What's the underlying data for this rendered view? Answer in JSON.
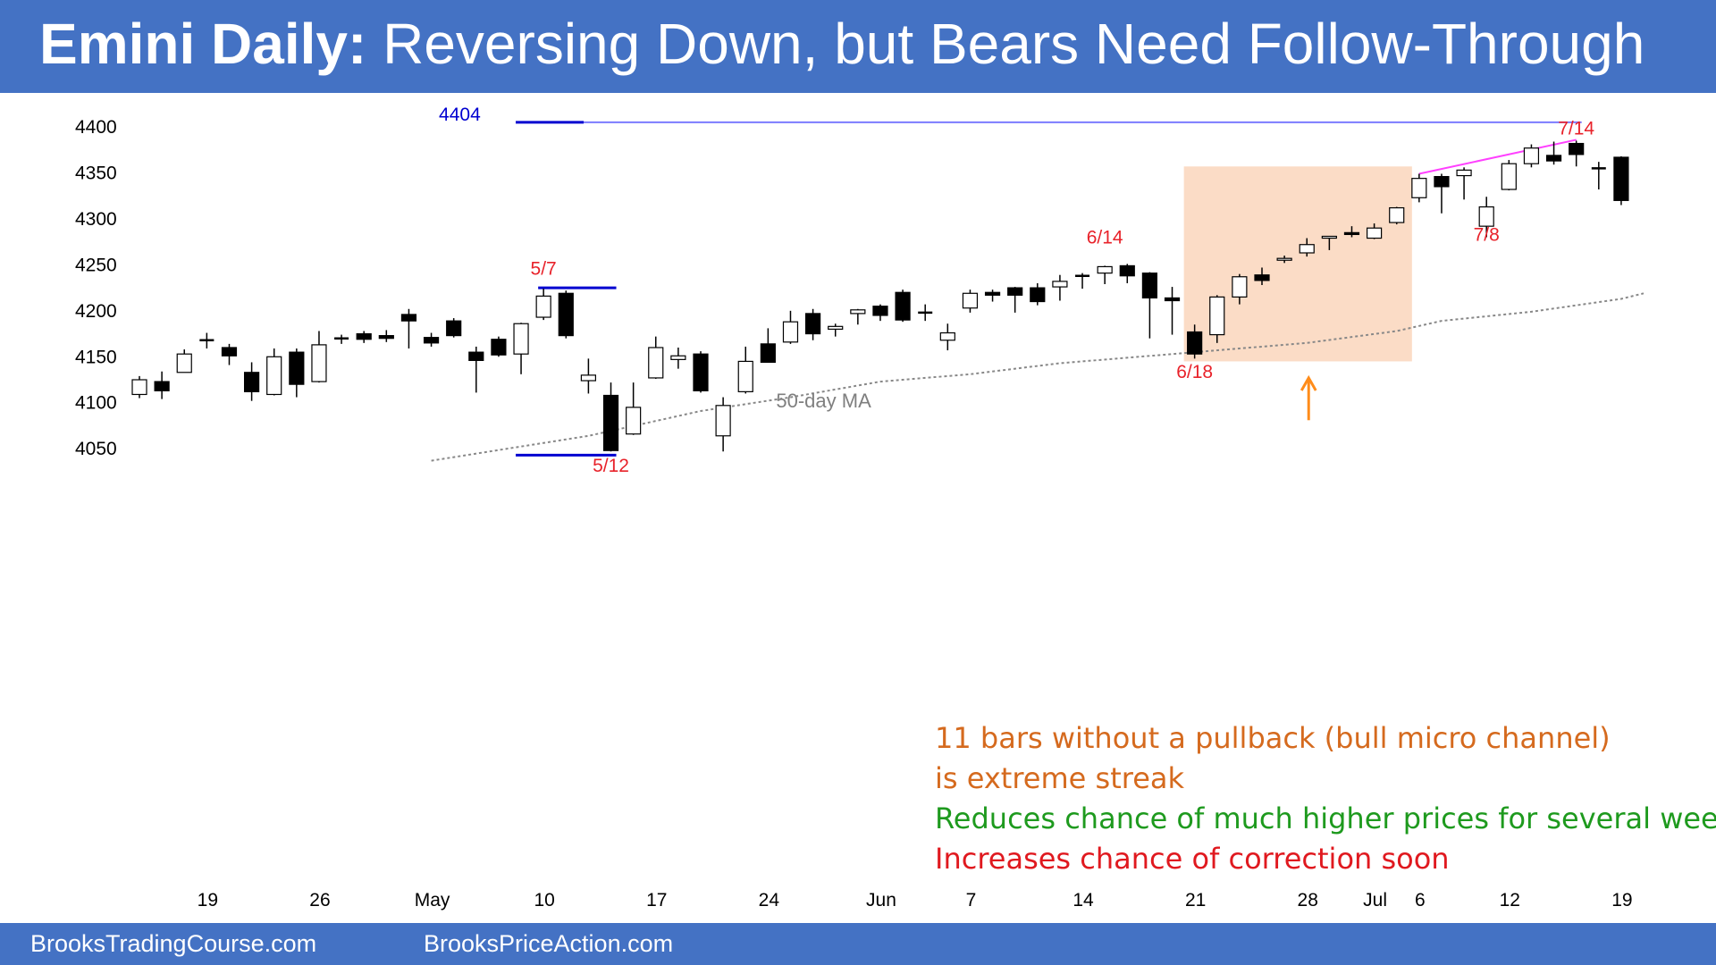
{
  "header": {
    "title_bold": "Emini Daily:",
    "title_rest": " Reversing Down, but Bears Need Follow-Through"
  },
  "footer": {
    "link1": "BrooksTradingCourse.com",
    "link2": "BrooksPriceAction.com"
  },
  "colors": {
    "banner": "#4472C4",
    "red_label": "#e8222a",
    "orange_note": "#d56a1e",
    "green_note": "#1e9a1e",
    "red_note": "#e0191f",
    "shade": "#fbdcc6",
    "level_line": "#0000d0",
    "trend_line": "#ff40ff",
    "ma_line": "#888888"
  },
  "notes": {
    "line1": "11 bars without a pullback (bull micro channel)",
    "line2": "is extreme streak",
    "line3": "Reduces chance of much higher prices for several weeks",
    "line4": "Increases chance of correction soon"
  },
  "chart_data": {
    "type": "candlestick",
    "title": "",
    "ylim": [
      4025,
      4410
    ],
    "y_ticks": [
      4050,
      4100,
      4150,
      4200,
      4250,
      4300,
      4350,
      4400
    ],
    "x_ticks": [
      {
        "i": 3,
        "label": "19"
      },
      {
        "i": 8,
        "label": "26"
      },
      {
        "i": 13,
        "label": "May"
      },
      {
        "i": 18,
        "label": "10"
      },
      {
        "i": 23,
        "label": "17"
      },
      {
        "i": 28,
        "label": "24"
      },
      {
        "i": 33,
        "label": "Jun"
      },
      {
        "i": 37,
        "label": "7"
      },
      {
        "i": 42,
        "label": "14"
      },
      {
        "i": 47,
        "label": "21"
      },
      {
        "i": 52,
        "label": "28"
      },
      {
        "i": 55,
        "label": "Jul"
      },
      {
        "i": 57,
        "label": "6"
      },
      {
        "i": 61,
        "label": "12"
      },
      {
        "i": 66,
        "label": "19"
      }
    ],
    "candles": [
      {
        "o": 4108,
        "h": 4128,
        "l": 4104,
        "c": 4124
      },
      {
        "o": 4122,
        "h": 4133,
        "l": 4103,
        "c": 4112
      },
      {
        "o": 4132,
        "h": 4157,
        "l": 4132,
        "c": 4152
      },
      {
        "o": 4167,
        "h": 4175,
        "l": 4158,
        "c": 4167
      },
      {
        "o": 4159,
        "h": 4163,
        "l": 4140,
        "c": 4150
      },
      {
        "o": 4132,
        "h": 4143,
        "l": 4101,
        "c": 4111
      },
      {
        "o": 4108,
        "h": 4158,
        "l": 4107,
        "c": 4149
      },
      {
        "o": 4154,
        "h": 4158,
        "l": 4105,
        "c": 4119
      },
      {
        "o": 4122,
        "h": 4177,
        "l": 4121,
        "c": 4162
      },
      {
        "o": 4168,
        "h": 4173,
        "l": 4163,
        "c": 4169
      },
      {
        "o": 4174,
        "h": 4177,
        "l": 4164,
        "c": 4168
      },
      {
        "o": 4172,
        "h": 4178,
        "l": 4165,
        "c": 4169
      },
      {
        "o": 4195,
        "h": 4201,
        "l": 4158,
        "c": 4188
      },
      {
        "o": 4170,
        "h": 4175,
        "l": 4160,
        "c": 4164
      },
      {
        "o": 4188,
        "h": 4191,
        "l": 4170,
        "c": 4172
      },
      {
        "o": 4154,
        "h": 4160,
        "l": 4110,
        "c": 4145
      },
      {
        "o": 4168,
        "h": 4171,
        "l": 4149,
        "c": 4151
      },
      {
        "o": 4152,
        "h": 4186,
        "l": 4130,
        "c": 4185
      },
      {
        "o": 4192,
        "h": 4223,
        "l": 4189,
        "c": 4215
      },
      {
        "o": 4218,
        "h": 4221,
        "l": 4169,
        "c": 4172
      },
      {
        "o": 4123,
        "h": 4147,
        "l": 4109,
        "c": 4129
      },
      {
        "o": 4107,
        "h": 4121,
        "l": 4046,
        "c": 4047
      },
      {
        "o": 4065,
        "h": 4121,
        "l": 4064,
        "c": 4094
      },
      {
        "o": 4126,
        "h": 4171,
        "l": 4125,
        "c": 4159
      },
      {
        "o": 4146,
        "h": 4159,
        "l": 4136,
        "c": 4150
      },
      {
        "o": 4152,
        "h": 4155,
        "l": 4110,
        "c": 4112
      },
      {
        "o": 4063,
        "h": 4105,
        "l": 4046,
        "c": 4096
      },
      {
        "o": 4111,
        "h": 4160,
        "l": 4109,
        "c": 4144
      },
      {
        "o": 4163,
        "h": 4180,
        "l": 4143,
        "c": 4143
      },
      {
        "o": 4165,
        "h": 4199,
        "l": 4163,
        "c": 4187
      },
      {
        "o": 4196,
        "h": 4201,
        "l": 4167,
        "c": 4174
      },
      {
        "o": 4179,
        "h": 4185,
        "l": 4171,
        "c": 4182
      },
      {
        "o": 4196,
        "h": 4201,
        "l": 4184,
        "c": 4200
      },
      {
        "o": 4204,
        "h": 4206,
        "l": 4188,
        "c": 4194
      },
      {
        "o": 4219,
        "h": 4222,
        "l": 4187,
        "c": 4189
      },
      {
        "o": 4197,
        "h": 4206,
        "l": 4188,
        "c": 4197
      },
      {
        "o": 4167,
        "h": 4185,
        "l": 4156,
        "c": 4175
      },
      {
        "o": 4202,
        "h": 4222,
        "l": 4197,
        "c": 4218
      },
      {
        "o": 4219,
        "h": 4222,
        "l": 4209,
        "c": 4216
      },
      {
        "o": 4224,
        "h": 4225,
        "l": 4197,
        "c": 4216
      },
      {
        "o": 4224,
        "h": 4229,
        "l": 4205,
        "c": 4209
      },
      {
        "o": 4225,
        "h": 4238,
        "l": 4210,
        "c": 4231
      },
      {
        "o": 4236,
        "h": 4240,
        "l": 4223,
        "c": 4237
      },
      {
        "o": 4240,
        "h": 4248,
        "l": 4228,
        "c": 4247
      },
      {
        "o": 4248,
        "h": 4250,
        "l": 4229,
        "c": 4237
      },
      {
        "o": 4240,
        "h": 4241,
        "l": 4169,
        "c": 4213
      },
      {
        "o": 4213,
        "h": 4225,
        "l": 4173,
        "c": 4210
      },
      {
        "o": 4176,
        "h": 4184,
        "l": 4147,
        "c": 4152
      },
      {
        "o": 4173,
        "h": 4216,
        "l": 4164,
        "c": 4214
      },
      {
        "o": 4214,
        "h": 4239,
        "l": 4206,
        "c": 4236
      },
      {
        "o": 4238,
        "h": 4246,
        "l": 4227,
        "c": 4232
      },
      {
        "o": 4254,
        "h": 4259,
        "l": 4251,
        "c": 4256
      },
      {
        "o": 4262,
        "h": 4278,
        "l": 4258,
        "c": 4271
      },
      {
        "o": 4278,
        "h": 4280,
        "l": 4265,
        "c": 4280
      },
      {
        "o": 4284,
        "h": 4291,
        "l": 4279,
        "c": 4282
      },
      {
        "o": 4278,
        "h": 4294,
        "l": 4277,
        "c": 4289
      },
      {
        "o": 4295,
        "h": 4312,
        "l": 4293,
        "c": 4311
      },
      {
        "o": 4322,
        "h": 4348,
        "l": 4317,
        "c": 4343
      },
      {
        "o": 4345,
        "h": 4348,
        "l": 4305,
        "c": 4334
      },
      {
        "o": 4346,
        "h": 4355,
        "l": 4320,
        "c": 4352
      },
      {
        "o": 4291,
        "h": 4323,
        "l": 4279,
        "c": 4312
      },
      {
        "o": 4331,
        "h": 4363,
        "l": 4330,
        "c": 4359
      },
      {
        "o": 4359,
        "h": 4380,
        "l": 4355,
        "c": 4376
      },
      {
        "o": 4368,
        "h": 4383,
        "l": 4358,
        "c": 4362
      },
      {
        "o": 4381,
        "h": 4384,
        "l": 4356,
        "c": 4369
      },
      {
        "o": 4354,
        "h": 4361,
        "l": 4331,
        "c": 4353
      },
      {
        "o": 4366,
        "h": 4367,
        "l": 4314,
        "c": 4319
      }
    ],
    "ma_label": "50-day MA",
    "ma_points": [
      {
        "i": 13,
        "v": 4036
      },
      {
        "i": 20,
        "v": 4063
      },
      {
        "i": 25,
        "v": 4090
      },
      {
        "i": 29,
        "v": 4105
      },
      {
        "i": 33,
        "v": 4122
      },
      {
        "i": 37,
        "v": 4130
      },
      {
        "i": 41,
        "v": 4142
      },
      {
        "i": 45,
        "v": 4150
      },
      {
        "i": 49,
        "v": 4158
      },
      {
        "i": 52,
        "v": 4164
      },
      {
        "i": 56,
        "v": 4177
      },
      {
        "i": 58,
        "v": 4188
      },
      {
        "i": 62,
        "v": 4198
      },
      {
        "i": 66,
        "v": 4212
      },
      {
        "i": 67,
        "v": 4218
      }
    ],
    "levels": [
      {
        "label": "4404",
        "value": 4404,
        "from_i": 17,
        "to_i": 64
      },
      {
        "label": "",
        "value": 4224,
        "from_i": 18,
        "to_i": 21
      },
      {
        "label": "",
        "value": 4042,
        "from_i": 17,
        "to_i": 21
      }
    ],
    "trend_line": {
      "from_i": 57,
      "from_v": 4348,
      "to_i": 64,
      "to_v": 4385
    },
    "shade": {
      "from_i": 47,
      "to_i": 57,
      "y_top": 4356,
      "y_bottom": 4144
    },
    "arrow": {
      "i": 52,
      "from_v": 4080,
      "to_v": 4126
    },
    "annotations": [
      {
        "text": "5/7",
        "i": 18,
        "v": 4238
      },
      {
        "text": "5/12",
        "i": 21,
        "v": 4024
      },
      {
        "text": "6/14",
        "i": 43,
        "v": 4272
      },
      {
        "text": "6/18",
        "i": 47,
        "v": 4126
      },
      {
        "text": "7/8",
        "i": 60,
        "v": 4275
      },
      {
        "text": "7/14",
        "i": 64,
        "v": 4391
      }
    ]
  }
}
